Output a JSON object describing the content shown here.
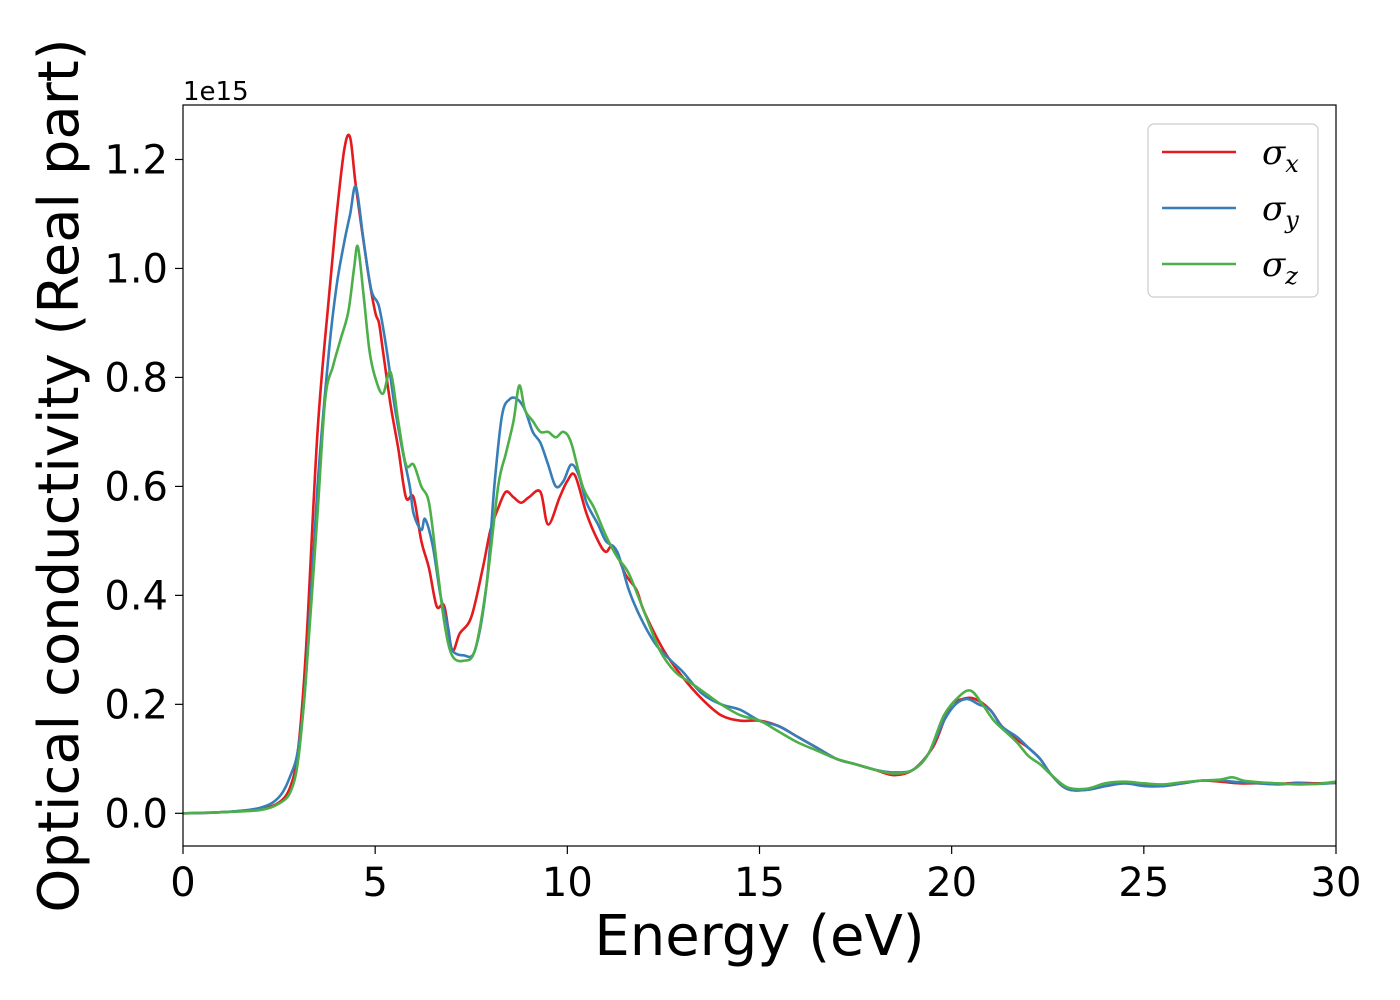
{
  "chart_data": {
    "type": "line",
    "title": "",
    "xlabel": "Energy (eV)",
    "ylabel": "Optical conductivity (Real part)",
    "y_offset_label": "1e15",
    "xlim": [
      0,
      30
    ],
    "ylim": [
      -0.06,
      1.3
    ],
    "x_ticks": [
      0,
      5,
      10,
      15,
      20,
      25,
      30
    ],
    "x_tick_labels": [
      "0",
      "5",
      "10",
      "15",
      "20",
      "25",
      "30"
    ],
    "y_ticks": [
      0.0,
      0.2,
      0.4,
      0.6,
      0.8,
      1.0,
      1.2
    ],
    "y_tick_labels": [
      "0.0",
      "0.2",
      "0.4",
      "0.6",
      "0.8",
      "1.0",
      "1.2"
    ],
    "grid": false,
    "legend_position": "top-right",
    "series": [
      {
        "name": "σx",
        "symbol": "σ",
        "subscript": "x",
        "color": "#e41a1c",
        "points": [
          [
            0,
            0
          ],
          [
            1,
            0.002
          ],
          [
            2,
            0.008
          ],
          [
            2.5,
            0.02
          ],
          [
            2.8,
            0.05
          ],
          [
            3.0,
            0.12
          ],
          [
            3.2,
            0.3
          ],
          [
            3.5,
            0.7
          ],
          [
            3.8,
            0.95
          ],
          [
            4.0,
            1.1
          ],
          [
            4.2,
            1.22
          ],
          [
            4.35,
            1.24
          ],
          [
            4.5,
            1.15
          ],
          [
            4.8,
            1.0
          ],
          [
            5.0,
            0.92
          ],
          [
            5.1,
            0.9
          ],
          [
            5.2,
            0.85
          ],
          [
            5.4,
            0.75
          ],
          [
            5.6,
            0.67
          ],
          [
            5.8,
            0.58
          ],
          [
            6.0,
            0.58
          ],
          [
            6.2,
            0.5
          ],
          [
            6.4,
            0.45
          ],
          [
            6.6,
            0.38
          ],
          [
            6.8,
            0.38
          ],
          [
            7.0,
            0.3
          ],
          [
            7.2,
            0.33
          ],
          [
            7.5,
            0.36
          ],
          [
            7.8,
            0.45
          ],
          [
            8.0,
            0.52
          ],
          [
            8.2,
            0.56
          ],
          [
            8.4,
            0.59
          ],
          [
            8.6,
            0.58
          ],
          [
            8.8,
            0.57
          ],
          [
            9.0,
            0.58
          ],
          [
            9.3,
            0.59
          ],
          [
            9.5,
            0.53
          ],
          [
            9.8,
            0.58
          ],
          [
            10.0,
            0.61
          ],
          [
            10.2,
            0.62
          ],
          [
            10.5,
            0.55
          ],
          [
            10.8,
            0.5
          ],
          [
            11.0,
            0.48
          ],
          [
            11.2,
            0.49
          ],
          [
            11.5,
            0.44
          ],
          [
            11.8,
            0.41
          ],
          [
            12.0,
            0.37
          ],
          [
            12.5,
            0.3
          ],
          [
            13.0,
            0.25
          ],
          [
            13.5,
            0.21
          ],
          [
            14.0,
            0.18
          ],
          [
            14.5,
            0.17
          ],
          [
            15.0,
            0.17
          ],
          [
            15.5,
            0.16
          ],
          [
            16.0,
            0.14
          ],
          [
            16.5,
            0.12
          ],
          [
            17.0,
            0.1
          ],
          [
            17.5,
            0.09
          ],
          [
            18.0,
            0.08
          ],
          [
            18.5,
            0.07
          ],
          [
            19.0,
            0.08
          ],
          [
            19.5,
            0.12
          ],
          [
            19.8,
            0.17
          ],
          [
            20.0,
            0.2
          ],
          [
            20.3,
            0.21
          ],
          [
            20.6,
            0.21
          ],
          [
            21.0,
            0.19
          ],
          [
            21.3,
            0.16
          ],
          [
            21.6,
            0.14
          ],
          [
            21.8,
            0.13
          ],
          [
            22.0,
            0.12
          ],
          [
            22.3,
            0.1
          ],
          [
            22.6,
            0.07
          ],
          [
            23.0,
            0.045
          ],
          [
            23.5,
            0.043
          ],
          [
            24.0,
            0.05
          ],
          [
            24.5,
            0.055
          ],
          [
            25.0,
            0.052
          ],
          [
            25.5,
            0.05
          ],
          [
            26.0,
            0.055
          ],
          [
            26.5,
            0.06
          ],
          [
            27.0,
            0.058
          ],
          [
            27.5,
            0.055
          ],
          [
            28.0,
            0.055
          ],
          [
            28.5,
            0.054
          ],
          [
            29.0,
            0.056
          ],
          [
            29.5,
            0.055
          ],
          [
            30.0,
            0.056
          ]
        ]
      },
      {
        "name": "σy",
        "symbol": "σ",
        "subscript": "y",
        "color": "#377eb8",
        "points": [
          [
            0,
            0
          ],
          [
            1,
            0.002
          ],
          [
            2,
            0.01
          ],
          [
            2.5,
            0.03
          ],
          [
            2.8,
            0.07
          ],
          [
            3.0,
            0.12
          ],
          [
            3.2,
            0.25
          ],
          [
            3.5,
            0.6
          ],
          [
            3.8,
            0.85
          ],
          [
            4.0,
            0.97
          ],
          [
            4.2,
            1.05
          ],
          [
            4.35,
            1.1
          ],
          [
            4.5,
            1.15
          ],
          [
            4.7,
            1.05
          ],
          [
            4.9,
            0.96
          ],
          [
            5.1,
            0.93
          ],
          [
            5.3,
            0.85
          ],
          [
            5.5,
            0.75
          ],
          [
            5.7,
            0.67
          ],
          [
            5.9,
            0.6
          ],
          [
            6.0,
            0.55
          ],
          [
            6.2,
            0.52
          ],
          [
            6.3,
            0.54
          ],
          [
            6.5,
            0.49
          ],
          [
            6.7,
            0.4
          ],
          [
            6.9,
            0.34
          ],
          [
            7.0,
            0.3
          ],
          [
            7.3,
            0.29
          ],
          [
            7.6,
            0.3
          ],
          [
            7.9,
            0.42
          ],
          [
            8.1,
            0.6
          ],
          [
            8.3,
            0.73
          ],
          [
            8.5,
            0.76
          ],
          [
            8.7,
            0.76
          ],
          [
            8.9,
            0.74
          ],
          [
            9.1,
            0.7
          ],
          [
            9.3,
            0.68
          ],
          [
            9.5,
            0.64
          ],
          [
            9.7,
            0.6
          ],
          [
            9.9,
            0.61
          ],
          [
            10.1,
            0.64
          ],
          [
            10.3,
            0.62
          ],
          [
            10.5,
            0.57
          ],
          [
            10.8,
            0.53
          ],
          [
            11.0,
            0.5
          ],
          [
            11.3,
            0.48
          ],
          [
            11.6,
            0.41
          ],
          [
            11.9,
            0.36
          ],
          [
            12.3,
            0.31
          ],
          [
            12.7,
            0.28
          ],
          [
            13.0,
            0.26
          ],
          [
            13.5,
            0.22
          ],
          [
            14.0,
            0.2
          ],
          [
            14.5,
            0.19
          ],
          [
            15.0,
            0.17
          ],
          [
            15.5,
            0.16
          ],
          [
            16.0,
            0.14
          ],
          [
            16.5,
            0.12
          ],
          [
            17.0,
            0.1
          ],
          [
            17.5,
            0.09
          ],
          [
            18.0,
            0.08
          ],
          [
            18.5,
            0.075
          ],
          [
            19.0,
            0.08
          ],
          [
            19.4,
            0.11
          ],
          [
            19.8,
            0.17
          ],
          [
            20.1,
            0.2
          ],
          [
            20.4,
            0.21
          ],
          [
            20.7,
            0.2
          ],
          [
            21.0,
            0.19
          ],
          [
            21.3,
            0.16
          ],
          [
            21.7,
            0.14
          ],
          [
            22.0,
            0.12
          ],
          [
            22.3,
            0.1
          ],
          [
            22.6,
            0.07
          ],
          [
            23.0,
            0.045
          ],
          [
            23.5,
            0.043
          ],
          [
            24.0,
            0.05
          ],
          [
            24.5,
            0.055
          ],
          [
            25.0,
            0.05
          ],
          [
            25.5,
            0.05
          ],
          [
            26.0,
            0.055
          ],
          [
            26.5,
            0.06
          ],
          [
            27.0,
            0.06
          ],
          [
            27.5,
            0.057
          ],
          [
            28.0,
            0.055
          ],
          [
            28.5,
            0.053
          ],
          [
            29.0,
            0.055
          ],
          [
            29.5,
            0.054
          ],
          [
            30.0,
            0.056
          ]
        ]
      },
      {
        "name": "σz",
        "symbol": "σ",
        "subscript": "z",
        "color": "#4daf4a",
        "points": [
          [
            0,
            0
          ],
          [
            1,
            0.002
          ],
          [
            2,
            0.006
          ],
          [
            2.5,
            0.018
          ],
          [
            2.8,
            0.04
          ],
          [
            3.0,
            0.1
          ],
          [
            3.2,
            0.25
          ],
          [
            3.5,
            0.55
          ],
          [
            3.7,
            0.76
          ],
          [
            3.9,
            0.82
          ],
          [
            4.1,
            0.87
          ],
          [
            4.3,
            0.92
          ],
          [
            4.45,
            1.0
          ],
          [
            4.55,
            1.04
          ],
          [
            4.7,
            0.95
          ],
          [
            4.85,
            0.85
          ],
          [
            5.0,
            0.8
          ],
          [
            5.2,
            0.77
          ],
          [
            5.4,
            0.81
          ],
          [
            5.6,
            0.72
          ],
          [
            5.8,
            0.64
          ],
          [
            6.0,
            0.64
          ],
          [
            6.2,
            0.6
          ],
          [
            6.4,
            0.57
          ],
          [
            6.6,
            0.46
          ],
          [
            6.8,
            0.35
          ],
          [
            7.0,
            0.29
          ],
          [
            7.3,
            0.28
          ],
          [
            7.6,
            0.3
          ],
          [
            7.9,
            0.42
          ],
          [
            8.2,
            0.6
          ],
          [
            8.4,
            0.66
          ],
          [
            8.6,
            0.72
          ],
          [
            8.75,
            0.785
          ],
          [
            8.9,
            0.74
          ],
          [
            9.1,
            0.72
          ],
          [
            9.3,
            0.7
          ],
          [
            9.5,
            0.7
          ],
          [
            9.7,
            0.69
          ],
          [
            9.9,
            0.7
          ],
          [
            10.1,
            0.68
          ],
          [
            10.4,
            0.6
          ],
          [
            10.7,
            0.56
          ],
          [
            11.0,
            0.51
          ],
          [
            11.3,
            0.47
          ],
          [
            11.6,
            0.44
          ],
          [
            12.0,
            0.37
          ],
          [
            12.4,
            0.3
          ],
          [
            12.8,
            0.26
          ],
          [
            13.2,
            0.24
          ],
          [
            13.6,
            0.22
          ],
          [
            14.0,
            0.2
          ],
          [
            14.5,
            0.18
          ],
          [
            15.0,
            0.17
          ],
          [
            15.5,
            0.15
          ],
          [
            16.0,
            0.13
          ],
          [
            16.5,
            0.115
          ],
          [
            17.0,
            0.1
          ],
          [
            17.5,
            0.09
          ],
          [
            18.0,
            0.08
          ],
          [
            18.5,
            0.073
          ],
          [
            19.0,
            0.08
          ],
          [
            19.4,
            0.11
          ],
          [
            19.8,
            0.18
          ],
          [
            20.2,
            0.215
          ],
          [
            20.5,
            0.225
          ],
          [
            20.8,
            0.2
          ],
          [
            21.1,
            0.17
          ],
          [
            21.4,
            0.15
          ],
          [
            21.7,
            0.13
          ],
          [
            22.0,
            0.105
          ],
          [
            22.3,
            0.09
          ],
          [
            22.6,
            0.07
          ],
          [
            23.0,
            0.048
          ],
          [
            23.5,
            0.045
          ],
          [
            24.0,
            0.055
          ],
          [
            24.5,
            0.058
          ],
          [
            25.0,
            0.055
          ],
          [
            25.5,
            0.053
          ],
          [
            26.0,
            0.057
          ],
          [
            26.5,
            0.06
          ],
          [
            27.0,
            0.062
          ],
          [
            27.3,
            0.066
          ],
          [
            27.6,
            0.06
          ],
          [
            28.0,
            0.057
          ],
          [
            28.5,
            0.055
          ],
          [
            29.0,
            0.053
          ],
          [
            29.5,
            0.054
          ],
          [
            30.0,
            0.058
          ]
        ]
      }
    ]
  }
}
